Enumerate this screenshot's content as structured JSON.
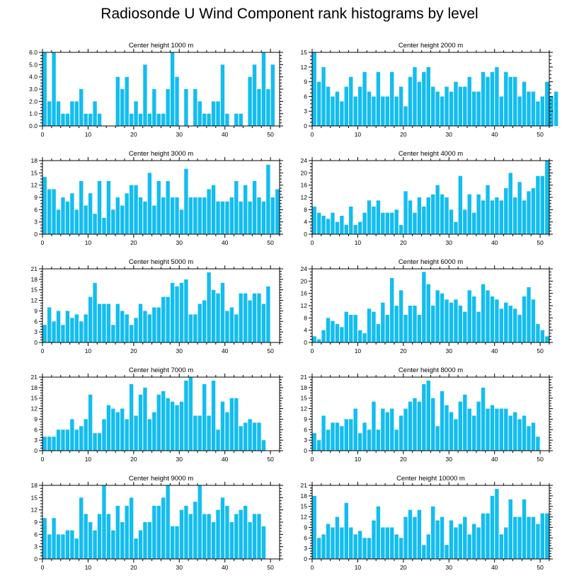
{
  "title": "Radiosonde U Wind Component rank histograms by level",
  "colors": {
    "bar": "#13bdf0",
    "axis": "#000000",
    "background": "#ffffff"
  },
  "chart_data": [
    {
      "type": "bar",
      "title": "Center height 1000 m",
      "xlabel": "",
      "ylabel": "",
      "xlim": [
        0,
        52
      ],
      "xticks": [
        0,
        10,
        20,
        30,
        40,
        50
      ],
      "ylim": [
        0,
        6
      ],
      "yticks": [
        "0.0",
        "1.0",
        "2.0",
        "3.0",
        "4.0",
        "5.0",
        "6.0"
      ],
      "values": [
        6,
        2,
        6,
        2,
        1,
        1,
        2,
        2,
        3,
        1,
        1,
        2,
        1,
        0,
        0,
        0,
        4,
        3,
        4,
        1,
        2,
        1,
        5,
        1,
        3,
        1,
        1,
        3,
        6,
        4,
        0,
        3,
        0,
        3,
        2,
        1,
        1,
        2,
        2,
        5,
        1,
        0,
        1,
        1,
        0,
        4,
        5,
        3,
        6,
        3,
        5
      ]
    },
    {
      "type": "bar",
      "title": "Center height 2000 m",
      "xlabel": "",
      "ylabel": "",
      "xlim": [
        0,
        52
      ],
      "xticks": [
        0,
        10,
        20,
        30,
        40,
        50
      ],
      "ylim": [
        0,
        15
      ],
      "yticks": [
        "0",
        "3",
        "6",
        "9",
        "12",
        "15"
      ],
      "values": [
        15,
        9,
        12,
        8,
        6,
        7,
        5,
        8,
        10,
        6,
        8,
        11,
        7,
        6,
        11,
        6,
        6,
        11,
        6,
        8,
        4,
        10,
        12,
        9,
        11,
        12,
        8,
        7,
        6,
        8,
        7,
        9,
        8,
        8,
        10,
        7,
        7,
        11,
        10,
        11,
        12,
        6,
        11,
        10,
        10,
        6,
        9,
        7,
        7,
        5,
        6,
        9,
        6,
        7
      ]
    },
    {
      "type": "bar",
      "title": "Center height 3000 m",
      "xlabel": "",
      "ylabel": "",
      "xlim": [
        0,
        52
      ],
      "xticks": [
        0,
        10,
        20,
        30,
        40,
        50
      ],
      "ylim": [
        0,
        18
      ],
      "yticks": [
        "0",
        "3",
        "6",
        "9",
        "12",
        "15",
        "18"
      ],
      "values": [
        14,
        11,
        11,
        6,
        9,
        8,
        10,
        6,
        13,
        7,
        10,
        5,
        13,
        4,
        13,
        6,
        9,
        7,
        10,
        12,
        12,
        9,
        8,
        15,
        7,
        13,
        9,
        13,
        9,
        9,
        6,
        16,
        9,
        9,
        9,
        9,
        11,
        12,
        8,
        8,
        8,
        9,
        13,
        8,
        12,
        8,
        13,
        9,
        8,
        17,
        9,
        11
      ]
    },
    {
      "type": "bar",
      "title": "Center height 4000 m",
      "xlabel": "",
      "ylabel": "",
      "xlim": [
        0,
        52
      ],
      "xticks": [
        0,
        10,
        20,
        30,
        40,
        50
      ],
      "ylim": [
        0,
        24
      ],
      "yticks": [
        "0",
        "4",
        "8",
        "12",
        "16",
        "20",
        "24"
      ],
      "values": [
        9,
        7,
        6,
        5,
        7,
        4,
        6,
        3,
        9,
        3,
        4,
        7,
        11,
        9,
        11,
        7,
        7,
        7,
        8,
        3,
        14,
        11,
        7,
        12,
        9,
        12,
        13,
        16,
        13,
        12,
        8,
        4,
        19,
        8,
        13,
        7,
        13,
        11,
        16,
        11,
        12,
        11,
        15,
        20,
        12,
        17,
        11,
        14,
        15,
        19,
        19,
        24
      ]
    },
    {
      "type": "bar",
      "title": "Center height 5000 m",
      "xlabel": "",
      "ylabel": "",
      "xlim": [
        0,
        52
      ],
      "xticks": [
        0,
        10,
        20,
        30,
        40,
        50
      ],
      "ylim": [
        0,
        21
      ],
      "yticks": [
        "0",
        "3",
        "6",
        "9",
        "12",
        "15",
        "18",
        "21"
      ],
      "values": [
        5,
        10,
        6,
        9,
        5,
        9,
        7,
        8,
        6,
        8,
        13,
        17,
        11,
        11,
        11,
        5,
        11,
        9,
        8,
        5,
        7,
        11,
        9,
        8,
        10,
        10,
        13,
        13,
        17,
        16,
        17,
        18,
        8,
        8,
        11,
        12,
        20,
        15,
        14,
        17,
        9,
        10,
        8,
        14,
        14,
        12,
        14,
        14,
        11,
        16
      ]
    },
    {
      "type": "bar",
      "title": "Center height 6000 m",
      "xlabel": "",
      "ylabel": "",
      "xlim": [
        0,
        52
      ],
      "xticks": [
        0,
        10,
        20,
        30,
        40,
        50
      ],
      "ylim": [
        0,
        24
      ],
      "yticks": [
        "0",
        "4",
        "8",
        "12",
        "16",
        "20",
        "24"
      ],
      "values": [
        2,
        1,
        4,
        8,
        7,
        6,
        5,
        10,
        9,
        9,
        4,
        3,
        11,
        10,
        6,
        13,
        9,
        21,
        12,
        17,
        9,
        12,
        12,
        9,
        23,
        19,
        12,
        17,
        16,
        14,
        13,
        14,
        12,
        10,
        17,
        15,
        10,
        19,
        17,
        15,
        14,
        11,
        13,
        12,
        11,
        9,
        15,
        18,
        14,
        6,
        4,
        2
      ]
    },
    {
      "type": "bar",
      "title": "Center height 7000 m",
      "xlabel": "",
      "ylabel": "",
      "xlim": [
        0,
        52
      ],
      "xticks": [
        0,
        10,
        20,
        30,
        40,
        50
      ],
      "ylim": [
        0,
        21
      ],
      "yticks": [
        "0",
        "3",
        "6",
        "9",
        "12",
        "15",
        "18",
        "21"
      ],
      "values": [
        4,
        4,
        4,
        6,
        6,
        6,
        9,
        6,
        7,
        9,
        16,
        5,
        5,
        9,
        13,
        12,
        11,
        12,
        9,
        19,
        10,
        16,
        18,
        9,
        11,
        16,
        17,
        15,
        14,
        13,
        14,
        20,
        21,
        10,
        10,
        19,
        10,
        20,
        6,
        14,
        11,
        15,
        15,
        7,
        8,
        9,
        8,
        8,
        3
      ]
    },
    {
      "type": "bar",
      "title": "Center height 8000 m",
      "xlabel": "",
      "ylabel": "",
      "xlim": [
        0,
        52
      ],
      "xticks": [
        0,
        10,
        20,
        30,
        40,
        50
      ],
      "ylim": [
        0,
        21
      ],
      "yticks": [
        "0",
        "3",
        "6",
        "9",
        "12",
        "15",
        "18",
        "21"
      ],
      "values": [
        5,
        3,
        10,
        6,
        8,
        8,
        7,
        9,
        9,
        12,
        5,
        8,
        6,
        14,
        6,
        12,
        11,
        12,
        6,
        10,
        12,
        14,
        15,
        14,
        19,
        20,
        15,
        7,
        17,
        13,
        11,
        9,
        14,
        16,
        12,
        10,
        14,
        18,
        12,
        13,
        12,
        12,
        12,
        10,
        11,
        9,
        10,
        7,
        8,
        4
      ]
    },
    {
      "type": "bar",
      "title": "Center height 9000 m",
      "xlabel": "",
      "ylabel": "",
      "xlim": [
        0,
        52
      ],
      "xticks": [
        0,
        10,
        20,
        30,
        40,
        50
      ],
      "ylim": [
        0,
        18
      ],
      "yticks": [
        "0",
        "3",
        "6",
        "9",
        "12",
        "15",
        "18"
      ],
      "values": [
        10,
        6,
        10,
        6,
        6,
        7,
        7,
        5,
        15,
        11,
        9,
        7,
        11,
        18,
        11,
        7,
        13,
        9,
        13,
        15,
        5,
        7,
        9,
        9,
        13,
        13,
        15,
        18,
        8,
        8,
        12,
        13,
        11,
        14,
        18,
        11,
        11,
        9,
        12,
        15,
        13,
        9,
        11,
        12,
        13,
        9,
        11,
        11,
        8
      ]
    },
    {
      "type": "bar",
      "title": "Center height 10000 m",
      "xlabel": "",
      "ylabel": "",
      "xlim": [
        0,
        52
      ],
      "xticks": [
        0,
        10,
        20,
        30,
        40,
        50
      ],
      "ylim": [
        0,
        21
      ],
      "yticks": [
        "0",
        "3",
        "6",
        "9",
        "12",
        "15",
        "18",
        "21"
      ],
      "values": [
        18,
        6,
        7,
        10,
        9,
        12,
        9,
        16,
        9,
        7,
        8,
        6,
        6,
        11,
        15,
        9,
        9,
        9,
        7,
        6,
        12,
        14,
        12,
        14,
        4,
        7,
        15,
        11,
        12,
        4,
        11,
        9,
        10,
        12,
        7,
        10,
        9,
        13,
        13,
        18,
        20,
        7,
        9,
        17,
        12,
        12,
        17,
        12,
        12,
        10,
        13,
        13
      ]
    }
  ]
}
